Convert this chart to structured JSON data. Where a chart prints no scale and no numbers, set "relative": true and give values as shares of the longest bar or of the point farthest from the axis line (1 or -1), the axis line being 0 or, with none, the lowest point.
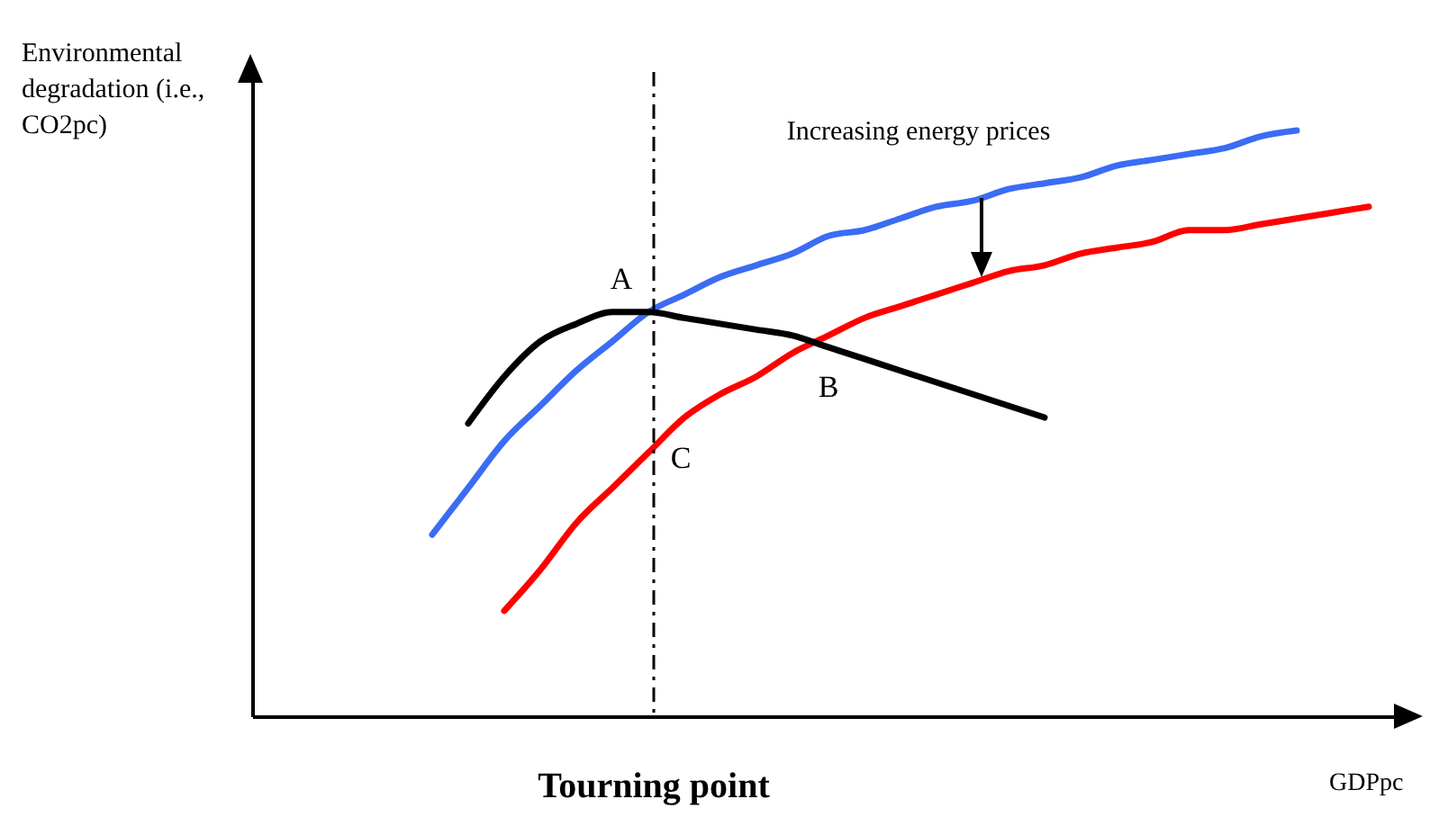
{
  "chart_data": {
    "type": "line",
    "relative": true,
    "xlabel": "GDPpc",
    "ylabel": "Environmental degradation (i.e., CO2pc)",
    "categories": [
      null,
      null,
      null,
      null,
      null,
      null,
      null,
      null,
      null,
      null,
      null,
      null,
      null,
      null,
      null,
      null,
      null,
      null,
      null,
      null,
      null,
      null,
      null,
      null,
      null,
      null,
      null,
      null,
      null,
      null,
      null,
      null,
      null
    ],
    "series": [
      {
        "color": "#3b6cf4",
        "values": [
          null,
          null,
          null,
          null,
          null,
          0.31,
          0.39,
          0.47,
          0.53,
          0.59,
          0.64,
          0.69,
          0.72,
          0.75,
          0.77,
          0.79,
          0.82,
          0.83,
          0.85,
          0.87,
          0.88,
          0.9,
          0.91,
          0.92,
          0.94,
          0.95,
          0.96,
          0.97,
          0.99,
          1.0,
          null,
          null,
          null
        ]
      },
      {
        "color": "#ff0000",
        "values": [
          null,
          null,
          null,
          null,
          null,
          null,
          null,
          0.18,
          0.25,
          0.33,
          0.39,
          0.45,
          0.51,
          0.55,
          0.58,
          0.62,
          0.65,
          0.68,
          0.7,
          0.72,
          0.74,
          0.76,
          0.77,
          0.79,
          0.8,
          0.81,
          0.83,
          0.83,
          0.84,
          0.85,
          0.86,
          0.87,
          null
        ]
      },
      {
        "color": "#000000",
        "values": [
          null,
          null,
          null,
          null,
          null,
          null,
          0.5,
          0.58,
          0.64,
          0.67,
          0.69,
          0.69,
          0.68,
          0.67,
          0.66,
          0.65,
          0.63,
          0.61,
          0.59,
          0.57,
          0.55,
          0.53,
          0.51,
          null,
          null,
          null,
          null,
          null,
          null,
          null,
          null,
          null,
          null
        ]
      }
    ],
    "annotations": [
      "A",
      "B",
      "C",
      "Increasing energy prices",
      "Tourning point"
    ]
  }
}
